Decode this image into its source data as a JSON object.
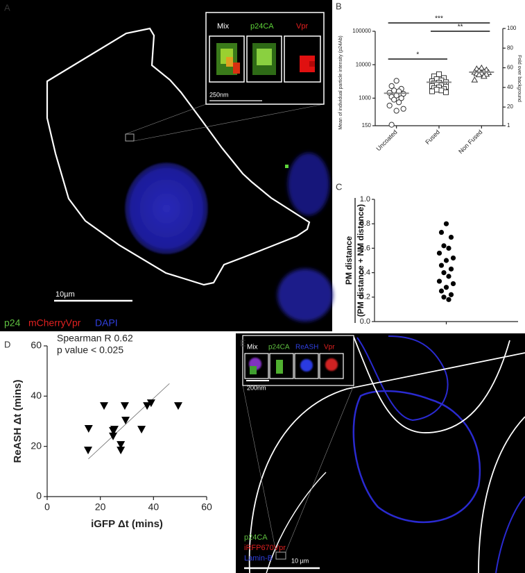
{
  "panel_labels": [
    "A",
    "B",
    "C",
    "D",
    "E"
  ],
  "image_a": {
    "inset_labels": [
      "Mix",
      "p24CA",
      "Vpr"
    ],
    "inset_scale": "250nm",
    "scale_bar": "10µm",
    "legend": [
      "p24",
      "mCherryVpr",
      "DAPI"
    ]
  },
  "image_e": {
    "inset_labels": [
      "Mix",
      "p24CA",
      "ReASH",
      "Vpr"
    ],
    "inset_scale": "200nm",
    "legend": [
      "p24CA",
      "iRFP670Vpr",
      "Lamin-B"
    ],
    "scale_bar": "10 µm"
  },
  "chart_data": [
    {
      "type": "strip",
      "ylabel": "Mean of individual particle intensity (p24Ab)",
      "y2label": "Fold over background",
      "categories": [
        "Uncoated",
        "Fused",
        "Non Fused"
      ],
      "log_scale": true,
      "ylim": [
        150,
        100000
      ],
      "yticks": [
        150,
        1000,
        10000,
        100000
      ],
      "y2lim": [
        1,
        100
      ],
      "y2ticks": [
        1,
        20,
        40,
        60,
        80,
        100
      ],
      "series": [
        {
          "marker": "circle",
          "color": "#333333",
          "values": [
            3300,
            2300,
            1900,
            1700,
            1600,
            1450,
            1350,
            1200,
            1100,
            1000,
            900,
            750,
            600,
            480,
            420,
            160
          ]
        },
        {
          "marker": "square",
          "color": "#333333",
          "values": [
            5200,
            4500,
            4000,
            3700,
            3400,
            3200,
            3000,
            2900,
            2800,
            2600,
            2500,
            2400,
            2300,
            2200,
            2100,
            2000,
            1900,
            1800,
            1700,
            1600,
            1500
          ]
        },
        {
          "marker": "triangle",
          "color": "#333333",
          "values": [
            8000,
            7500,
            7000,
            6500,
            6200,
            6000,
            5800,
            5600,
            5400,
            5200,
            5000,
            4500,
            3500
          ]
        }
      ],
      "means": [
        1400,
        3000,
        6000
      ],
      "significance": [
        {
          "from": "Uncoated",
          "to": "Fused",
          "label": "*"
        },
        {
          "from": "Uncoated",
          "to": "Non Fused",
          "label": "***"
        },
        {
          "from": "Fused",
          "to": "Non Fused",
          "label": "**"
        }
      ]
    },
    {
      "type": "strip",
      "ylabel": [
        "PM distance",
        "(PM distance + NM distance)"
      ],
      "categories": [
        null
      ],
      "ylim": [
        0,
        1
      ],
      "yticks": [
        {
          "value": 0,
          "label": "0.0"
        },
        0.2,
        0.4,
        0.6,
        0.8,
        {
          "value": 1,
          "label": "1.0"
        }
      ],
      "series": [
        {
          "marker": "dot",
          "color": "#000000",
          "values": [
            0.8,
            0.73,
            0.69,
            0.62,
            0.6,
            0.56,
            0.52,
            0.5,
            0.46,
            0.43,
            0.4,
            0.37,
            0.33,
            0.31,
            0.28,
            0.25,
            0.22,
            0.2,
            0.18
          ]
        }
      ]
    },
    {
      "type": "scatter",
      "annotations": [
        "Spearman R 0.62",
        "p value < 0.025"
      ],
      "xlabel": "iGFP Δt (mins)",
      "ylabel": "ReASH Δt (mins)",
      "xlim": [
        0,
        60
      ],
      "ylim": [
        0,
        60
      ],
      "xticks": [
        0,
        20,
        40,
        60
      ],
      "yticks": [
        0,
        20,
        40,
        60
      ],
      "marker": "triangle-down",
      "color": "#000000",
      "x": [
        15.6,
        15.4,
        21.4,
        24.8,
        25.3,
        24.8,
        29.2,
        29.5,
        27.7,
        27.7,
        35.5,
        37.6,
        39.1,
        49.3
      ],
      "y": [
        27.1,
        18.5,
        36.2,
        26.3,
        26.8,
        24.1,
        36.2,
        30.4,
        20.7,
        18.5,
        26.8,
        36.2,
        37.3,
        36.2
      ],
      "fit_line": {
        "x": [
          15.5,
          46
        ],
        "y": [
          15,
          45
        ]
      }
    }
  ]
}
